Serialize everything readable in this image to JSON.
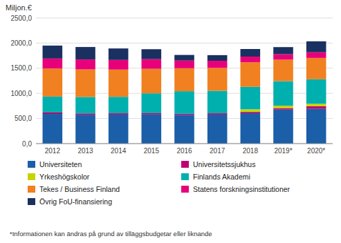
{
  "chart_data": {
    "type": "bar",
    "stacked": true,
    "ylabel": "Miljon.€",
    "categories": [
      "2012",
      "2013",
      "2014",
      "2015",
      "2016",
      "2017",
      "2018",
      "2019*",
      "2020*"
    ],
    "series": [
      {
        "name": "Universiteten",
        "color": "#1a5fa8",
        "values": [
          590,
          575,
          578,
          580,
          572,
          578,
          605,
          678,
          692
        ]
      },
      {
        "name": "Universitetssjukhus",
        "color": "#bf0072",
        "values": [
          28,
          25,
          25,
          25,
          22,
          25,
          25,
          28,
          52
        ]
      },
      {
        "name": "Yrkeshögskolor",
        "color": "#c8d400",
        "values": [
          0,
          0,
          0,
          0,
          0,
          0,
          52,
          48,
          48
        ]
      },
      {
        "name": "Finlands Akademi",
        "color": "#00b0ae",
        "values": [
          318,
          328,
          328,
          395,
          448,
          448,
          448,
          488,
          488
        ]
      },
      {
        "name": "Tekes / Business Finland",
        "color": "#f08020",
        "values": [
          558,
          548,
          542,
          488,
          458,
          455,
          488,
          428,
          425
        ]
      },
      {
        "name": "Statens forskningsinstitutioner",
        "color": "#e8007a",
        "values": [
          198,
          198,
          192,
          192,
          152,
          142,
          112,
          108,
          112
        ]
      },
      {
        "name": "Övrig FoU-finansiering",
        "color": "#1a3060",
        "values": [
          258,
          248,
          228,
          198,
          112,
          112,
          152,
          142,
          218
        ]
      }
    ],
    "ylim": [
      0,
      2500
    ],
    "yticks": [
      {
        "value": 0,
        "label": "0,0"
      },
      {
        "value": 500,
        "label": "500,0"
      },
      {
        "value": 1000,
        "label": "1000,0"
      },
      {
        "value": 1500,
        "label": "1500,0"
      },
      {
        "value": 2000,
        "label": "2000,0"
      },
      {
        "value": 2500,
        "label": "2500,0"
      }
    ],
    "grid": true,
    "legend": "bottom",
    "annotations": [
      "*Informationen kan ändras på grund av tilläggsbudgetar eller liknande"
    ]
  }
}
